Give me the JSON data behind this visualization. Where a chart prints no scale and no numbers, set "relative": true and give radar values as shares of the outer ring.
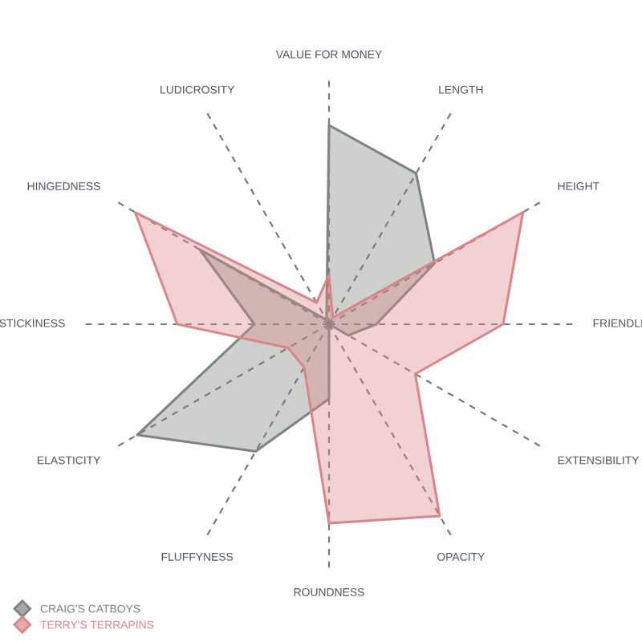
{
  "chart_data": {
    "type": "radar",
    "relative": true,
    "grid": true,
    "legend": "bottom left",
    "categories": [
      "VALUE FOR MONEY",
      "LENGTH",
      "HEIGHT",
      "FRIENDLI",
      "EXTENSIBILITY",
      "OPACITY",
      "ROUNDNESS",
      "FLUFFYNESS",
      "ELASTICITY",
      "STICKINESS",
      "HINGEDNESS",
      "LUDICROSITY"
    ],
    "series": [
      {
        "name": "CRAIG'S CATBOYS",
        "color": "#7d847f",
        "values": [
          0.8,
          0.7,
          0.49,
          0.19,
          0.09,
          0,
          0.3,
          0.59,
          0.89,
          0.3,
          0.6,
          0.02
        ]
      },
      {
        "name": "TERRY'S TERRAPINS",
        "color": "#d9858a",
        "values": [
          0.2,
          0.03,
          0.9,
          0.7,
          0.4,
          0.89,
          0.8,
          0.2,
          0.19,
          0.61,
          0.9,
          0.1
        ]
      }
    ]
  }
}
